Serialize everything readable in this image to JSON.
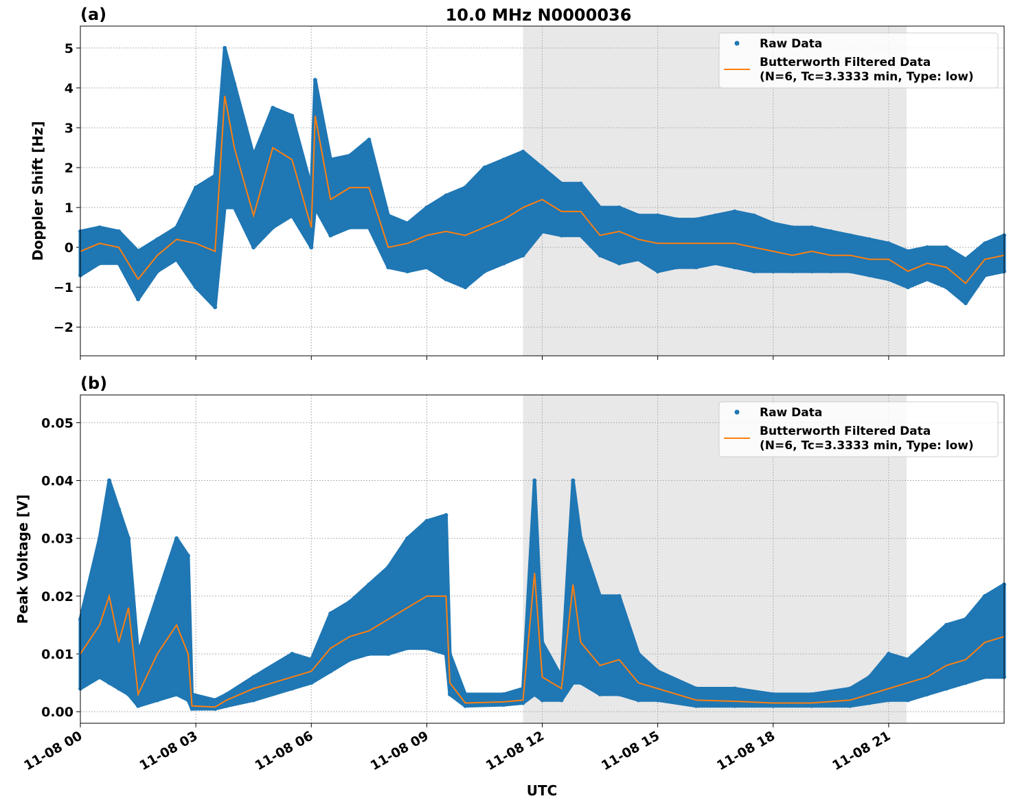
{
  "chart_data": {
    "type": "scatter+line",
    "title": "10.0 MHz N0000036",
    "xlabel": "UTC",
    "x_ticks": [
      "11-08 00",
      "11-08 03",
      "11-08 06",
      "11-08 09",
      "11-08 12",
      "11-08 15",
      "11-08 18",
      "11-08 21"
    ],
    "xlim": [
      "11-08 00:00",
      "11-09 00:00"
    ],
    "shaded_interval": [
      "11-08 11:30",
      "11-08 21:28"
    ],
    "grid": true,
    "colors": {
      "raw": "#1f77b4",
      "filtered": "#ff7f0e",
      "shade": "#e8e8e8"
    },
    "panels": [
      {
        "label": "(a)",
        "ylabel": "Doppler Shift [Hz]",
        "ylim": [
          -2.72,
          5.55
        ],
        "y_ticks": [
          -2,
          -1,
          0,
          1,
          2,
          3,
          4,
          5
        ],
        "y_tick_labels": [
          "−2",
          "−1",
          "0",
          "1",
          "2",
          "3",
          "4",
          "5"
        ],
        "legend": {
          "placement": "top-right",
          "raw": "Raw Data",
          "filtered_1": "Butterworth Filtered Data",
          "filtered_2": "(N=6, Tc=3.3333 min, Type: low)"
        },
        "x": [
          "11-08 00:00",
          "11-08 00:30",
          "11-08 01:00",
          "11-08 01:30",
          "11-08 02:00",
          "11-08 02:30",
          "11-08 03:00",
          "11-08 03:30",
          "11-08 03:45",
          "11-08 04:00",
          "11-08 04:30",
          "11-08 05:00",
          "11-08 05:30",
          "11-08 06:00",
          "11-08 06:06",
          "11-08 06:30",
          "11-08 07:00",
          "11-08 07:30",
          "11-08 08:00",
          "11-08 08:30",
          "11-08 09:00",
          "11-08 09:30",
          "11-08 10:00",
          "11-08 10:30",
          "11-08 11:00",
          "11-08 11:30",
          "11-08 12:00",
          "11-08 12:30",
          "11-08 13:00",
          "11-08 13:30",
          "11-08 14:00",
          "11-08 14:30",
          "11-08 15:00",
          "11-08 15:30",
          "11-08 16:00",
          "11-08 16:30",
          "11-08 17:00",
          "11-08 17:30",
          "11-08 18:00",
          "11-08 18:30",
          "11-08 19:00",
          "11-08 19:30",
          "11-08 20:00",
          "11-08 20:30",
          "11-08 21:00",
          "11-08 21:30",
          "11-08 22:00",
          "11-08 22:30",
          "11-08 23:00",
          "11-08 23:30",
          "11-09 00:00"
        ],
        "filtered": [
          -0.1,
          0.1,
          0,
          -0.8,
          -0.2,
          0.2,
          0.1,
          -0.1,
          3.8,
          2.5,
          0.8,
          2.5,
          2.2,
          0.5,
          3.3,
          1.2,
          1.5,
          1.5,
          0,
          0.1,
          0.3,
          0.4,
          0.3,
          0.5,
          0.7,
          1.0,
          1.2,
          0.9,
          0.9,
          0.3,
          0.4,
          0.2,
          0.1,
          0.1,
          0.1,
          0.1,
          0.1,
          0,
          -0.1,
          -0.2,
          -0.1,
          -0.2,
          -0.2,
          -0.3,
          -0.3,
          -0.6,
          -0.4,
          -0.5,
          -0.9,
          -0.3,
          -0.2
        ],
        "raw_low": [
          -0.7,
          -0.4,
          -0.4,
          -1.3,
          -0.6,
          -0.3,
          -1.0,
          -1.5,
          1.0,
          1.0,
          0,
          0.5,
          0.8,
          0,
          1.0,
          0.3,
          0.5,
          0.5,
          -0.5,
          -0.6,
          -0.5,
          -0.8,
          -1.0,
          -0.6,
          -0.4,
          -0.2,
          0.4,
          0.3,
          0.3,
          -0.2,
          -0.4,
          -0.3,
          -0.6,
          -0.5,
          -0.5,
          -0.4,
          -0.5,
          -0.6,
          -0.6,
          -0.6,
          -0.6,
          -0.6,
          -0.6,
          -0.7,
          -0.8,
          -1.0,
          -0.8,
          -1.0,
          -1.4,
          -0.7,
          -0.6
        ],
        "raw_high": [
          0.4,
          0.5,
          0.4,
          -0.1,
          0.2,
          0.5,
          1.5,
          1.8,
          5.0,
          4.1,
          2.3,
          3.5,
          3.3,
          1.5,
          4.2,
          2.2,
          2.3,
          2.7,
          0.8,
          0.6,
          1.0,
          1.3,
          1.5,
          2.0,
          2.2,
          2.4,
          2.0,
          1.6,
          1.6,
          1.0,
          1.0,
          0.8,
          0.8,
          0.7,
          0.7,
          0.8,
          0.9,
          0.8,
          0.6,
          0.5,
          0.5,
          0.4,
          0.3,
          0.2,
          0.1,
          -0.1,
          0,
          0,
          -0.3,
          0.1,
          0.3
        ]
      },
      {
        "label": "(b)",
        "ylabel": "Peak Voltage [V]",
        "ylim": [
          -0.002,
          0.0548
        ],
        "y_ticks": [
          0,
          0.01,
          0.02,
          0.03,
          0.04,
          0.05
        ],
        "y_tick_labels": [
          "0.00",
          "0.01",
          "0.02",
          "0.03",
          "0.04",
          "0.05"
        ],
        "legend": {
          "placement": "top-right",
          "raw": "Raw Data",
          "filtered_1": "Butterworth Filtered Data",
          "filtered_2": "(N=6, Tc=3.3333 min, Type: low)"
        },
        "x": [
          "11-08 00:00",
          "11-08 00:30",
          "11-08 00:45",
          "11-08 01:00",
          "11-08 01:15",
          "11-08 01:30",
          "11-08 02:00",
          "11-08 02:30",
          "11-08 02:48",
          "11-08 02:54",
          "11-08 03:30",
          "11-08 03:48",
          "11-08 04:30",
          "11-08 05:30",
          "11-08 06:00",
          "11-08 06:30",
          "11-08 07:00",
          "11-08 07:30",
          "11-08 08:00",
          "11-08 08:30",
          "11-08 09:00",
          "11-08 09:30",
          "11-08 09:36",
          "11-08 10:00",
          "11-08 11:00",
          "11-08 11:30",
          "11-08 11:48",
          "11-08 12:00",
          "11-08 12:30",
          "11-08 12:48",
          "11-08 13:00",
          "11-08 13:30",
          "11-08 14:00",
          "11-08 14:30",
          "11-08 15:00",
          "11-08 16:00",
          "11-08 17:00",
          "11-08 18:00",
          "11-08 19:00",
          "11-08 20:00",
          "11-08 20:30",
          "11-08 21:00",
          "11-08 21:30",
          "11-08 22:00",
          "11-08 22:30",
          "11-08 23:00",
          "11-08 23:30",
          "11-09 00:00"
        ],
        "filtered": [
          0.01,
          0.015,
          0.02,
          0.012,
          0.018,
          0.003,
          0.01,
          0.015,
          0.01,
          0.001,
          0.0008,
          0.002,
          0.004,
          0.006,
          0.007,
          0.011,
          0.013,
          0.014,
          0.016,
          0.018,
          0.02,
          0.02,
          0.005,
          0.0015,
          0.0017,
          0.002,
          0.024,
          0.006,
          0.004,
          0.022,
          0.012,
          0.008,
          0.009,
          0.005,
          0.004,
          0.002,
          0.0018,
          0.0015,
          0.0015,
          0.002,
          0.003,
          0.004,
          0.005,
          0.006,
          0.008,
          0.009,
          0.012,
          0.013
        ],
        "raw_low": [
          0.004,
          0.006,
          0.005,
          0.004,
          0.003,
          0.001,
          0.002,
          0.003,
          0.002,
          0.0005,
          0.0005,
          0.001,
          0.002,
          0.004,
          0.005,
          0.007,
          0.009,
          0.01,
          0.01,
          0.011,
          0.011,
          0.01,
          0.003,
          0.001,
          0.0012,
          0.0015,
          0.003,
          0.002,
          0.002,
          0.005,
          0.005,
          0.003,
          0.003,
          0.002,
          0.002,
          0.001,
          0.001,
          0.001,
          0.001,
          0.001,
          0.0015,
          0.002,
          0.002,
          0.003,
          0.004,
          0.005,
          0.006,
          0.006
        ],
        "raw_high": [
          0.016,
          0.03,
          0.04,
          0.035,
          0.03,
          0.01,
          0.02,
          0.03,
          0.027,
          0.003,
          0.002,
          0.003,
          0.006,
          0.01,
          0.009,
          0.017,
          0.019,
          0.022,
          0.025,
          0.03,
          0.033,
          0.034,
          0.01,
          0.003,
          0.003,
          0.004,
          0.04,
          0.012,
          0.006,
          0.04,
          0.03,
          0.02,
          0.02,
          0.01,
          0.007,
          0.004,
          0.004,
          0.003,
          0.003,
          0.004,
          0.006,
          0.01,
          0.009,
          0.012,
          0.015,
          0.016,
          0.02,
          0.022
        ]
      }
    ]
  }
}
